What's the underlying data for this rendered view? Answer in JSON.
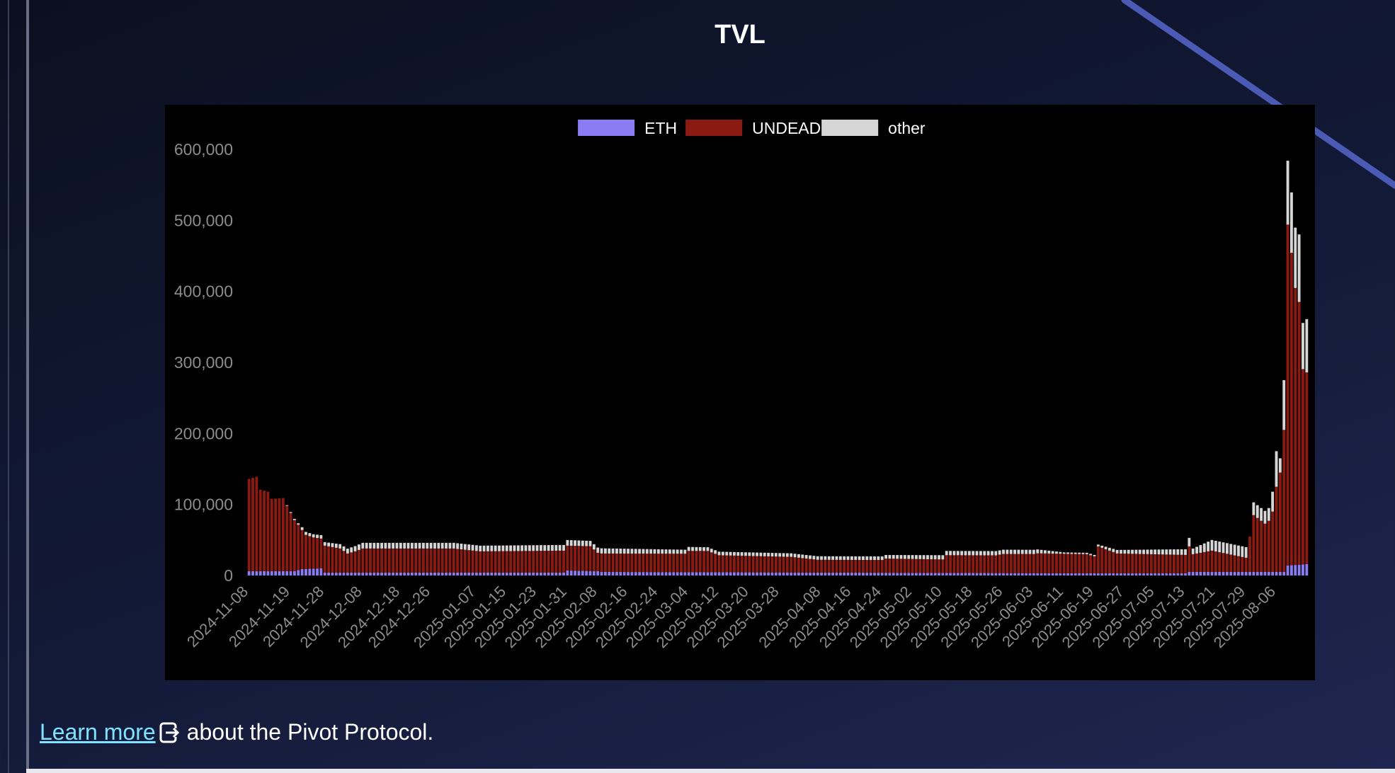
{
  "page": {
    "title": "TVL",
    "learn_more": "Learn more ",
    "about_text": "about the Pivot Protocol.",
    "external_icon": "external-link-icon"
  },
  "colors": {
    "ETH": "#8c7cf4",
    "UNDEAD": "#8b1a12",
    "other": "#d6d6d6",
    "tick": "#8c8c8c",
    "chart_bg": "#000000",
    "link": "#7fe3ff"
  },
  "chart_data": {
    "type": "bar",
    "stacked": true,
    "title": "",
    "xlabel": "",
    "ylabel": "",
    "ylim": [
      0,
      600000
    ],
    "yticks": [
      0,
      100000,
      200000,
      300000,
      400000,
      500000,
      600000
    ],
    "ytick_labels": [
      "0",
      "100,000",
      "200,000",
      "300,000",
      "400,000",
      "500,000",
      "600,000"
    ],
    "x_start": "2024-11-08",
    "x_end": "2025-08-14",
    "xtick_labels": [
      "2024-11-08",
      "2024-11-19",
      "2024-11-28",
      "2024-12-08",
      "2024-12-18",
      "2024-12-26",
      "2025-01-07",
      "2025-01-15",
      "2025-01-23",
      "2025-01-31",
      "2025-02-08",
      "2025-02-16",
      "2025-02-24",
      "2025-03-04",
      "2025-03-12",
      "2025-03-20",
      "2025-03-28",
      "2025-04-08",
      "2025-04-16",
      "2025-04-24",
      "2025-05-02",
      "2025-05-10",
      "2025-05-18",
      "2025-05-26",
      "2025-06-03",
      "2025-06-11",
      "2025-06-19",
      "2025-06-27",
      "2025-07-05",
      "2025-07-13",
      "2025-07-21",
      "2025-07-29",
      "2025-08-06"
    ],
    "legend": {
      "position": "top-center",
      "entries": [
        "ETH",
        "UNDEAD",
        "other"
      ]
    },
    "grid": false,
    "series": [
      {
        "name": "ETH",
        "anchors": [
          [
            "2024-11-08",
            6000
          ],
          [
            "2024-11-20",
            6000
          ],
          [
            "2024-11-22",
            9000
          ],
          [
            "2024-11-27",
            10000
          ],
          [
            "2024-11-28",
            4000
          ],
          [
            "2025-01-30",
            4000
          ],
          [
            "2025-01-31",
            7000
          ],
          [
            "2025-02-08",
            6000
          ],
          [
            "2025-02-09",
            5000
          ],
          [
            "2025-06-18",
            3000
          ],
          [
            "2025-07-13",
            3000
          ],
          [
            "2025-07-14",
            5000
          ],
          [
            "2025-08-08",
            5000
          ],
          [
            "2025-08-09",
            14000
          ],
          [
            "2025-08-14",
            16000
          ]
        ]
      },
      {
        "name": "UNDEAD",
        "anchors": [
          [
            "2024-11-08",
            130000
          ],
          [
            "2024-11-10",
            133000
          ],
          [
            "2024-11-11",
            115000
          ],
          [
            "2024-11-13",
            112000
          ],
          [
            "2024-11-14",
            102000
          ],
          [
            "2024-11-17",
            103000
          ],
          [
            "2024-11-18",
            92000
          ],
          [
            "2024-11-19",
            82000
          ],
          [
            "2024-11-20",
            72000
          ],
          [
            "2024-11-21",
            64000
          ],
          [
            "2024-11-22",
            55000
          ],
          [
            "2024-11-23",
            48000
          ],
          [
            "2024-11-25",
            44000
          ],
          [
            "2024-11-27",
            42000
          ],
          [
            "2024-11-28",
            38000
          ],
          [
            "2024-12-02",
            34000
          ],
          [
            "2024-12-04",
            27000
          ],
          [
            "2024-12-06",
            30000
          ],
          [
            "2024-12-08",
            34000
          ],
          [
            "2025-01-01",
            34000
          ],
          [
            "2025-01-08",
            30000
          ],
          [
            "2025-01-30",
            31000
          ],
          [
            "2025-01-31",
            35000
          ],
          [
            "2025-02-06",
            35000
          ],
          [
            "2025-02-08",
            26000
          ],
          [
            "2025-03-03",
            26000
          ],
          [
            "2025-03-04",
            30000
          ],
          [
            "2025-03-09",
            30000
          ],
          [
            "2025-03-12",
            24000
          ],
          [
            "2025-03-31",
            22000
          ],
          [
            "2025-04-07",
            18000
          ],
          [
            "2025-04-24",
            18000
          ],
          [
            "2025-04-25",
            20000
          ],
          [
            "2025-05-10",
            19000
          ],
          [
            "2025-05-11",
            25000
          ],
          [
            "2025-05-24",
            25000
          ],
          [
            "2025-05-26",
            27000
          ],
          [
            "2025-06-03",
            27000
          ],
          [
            "2025-06-04",
            28000
          ],
          [
            "2025-06-17",
            27000
          ],
          [
            "2025-06-19",
            24000
          ],
          [
            "2025-06-20",
            38000
          ],
          [
            "2025-06-25",
            28000
          ],
          [
            "2025-07-13",
            26000
          ],
          [
            "2025-07-14",
            36000
          ],
          [
            "2025-07-15",
            25000
          ],
          [
            "2025-07-20",
            30000
          ],
          [
            "2025-07-29",
            20000
          ],
          [
            "2025-07-31",
            80000
          ],
          [
            "2025-08-03",
            68000
          ],
          [
            "2025-08-04",
            72000
          ],
          [
            "2025-08-05",
            85000
          ],
          [
            "2025-08-06",
            120000
          ],
          [
            "2025-08-07",
            140000
          ],
          [
            "2025-08-08",
            200000
          ],
          [
            "2025-08-09",
            480000
          ],
          [
            "2025-08-10",
            440000
          ],
          [
            "2025-08-11",
            390000
          ],
          [
            "2025-08-12",
            370000
          ],
          [
            "2025-08-13",
            275000
          ],
          [
            "2025-08-14",
            270000
          ]
        ]
      },
      {
        "name": "other",
        "anchors": [
          [
            "2024-11-08",
            0
          ],
          [
            "2024-11-17",
            0
          ],
          [
            "2024-11-18",
            1000
          ],
          [
            "2024-11-21",
            2000
          ],
          [
            "2024-11-22",
            4000
          ],
          [
            "2024-11-28",
            5000
          ],
          [
            "2024-12-08",
            8000
          ],
          [
            "2025-01-30",
            8000
          ],
          [
            "2025-03-12",
            5000
          ],
          [
            "2025-04-24",
            5000
          ],
          [
            "2025-05-10",
            6000
          ],
          [
            "2025-06-03",
            6000
          ],
          [
            "2025-06-11",
            2000
          ],
          [
            "2025-06-19",
            2000
          ],
          [
            "2025-06-25",
            5000
          ],
          [
            "2025-07-13",
            8000
          ],
          [
            "2025-07-14",
            12000
          ],
          [
            "2025-07-15",
            8000
          ],
          [
            "2025-07-20",
            15000
          ],
          [
            "2025-07-29",
            15000
          ],
          [
            "2025-07-30",
            0
          ],
          [
            "2025-07-31",
            18000
          ],
          [
            "2025-08-04",
            18000
          ],
          [
            "2025-08-05",
            28000
          ],
          [
            "2025-08-06",
            50000
          ],
          [
            "2025-08-07",
            20000
          ],
          [
            "2025-08-08",
            70000
          ],
          [
            "2025-08-09",
            90000
          ],
          [
            "2025-08-10",
            85000
          ],
          [
            "2025-08-11",
            85000
          ],
          [
            "2025-08-12",
            95000
          ],
          [
            "2025-08-13",
            65000
          ],
          [
            "2025-08-14",
            75000
          ]
        ]
      }
    ]
  }
}
